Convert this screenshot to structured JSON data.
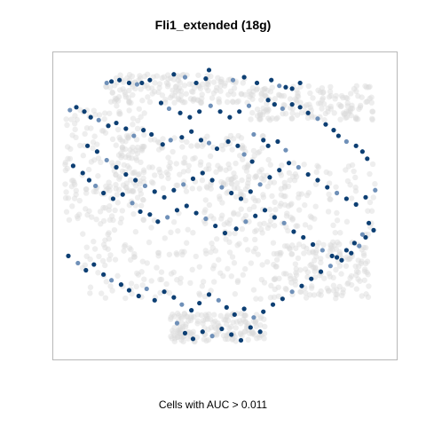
{
  "chart_data": {
    "type": "scatter",
    "title": "Fli1_extended (18g)",
    "xlabel": "Cells with AUC > 0.011",
    "ylabel": "",
    "series": [
      {
        "points": [
          [
            -0.74,
            0.86
          ],
          [
            -0.71,
            0.87
          ],
          [
            -0.66,
            0.88
          ],
          [
            -0.6,
            0.86
          ],
          [
            -0.55,
            0.85
          ],
          [
            -0.52,
            0.86
          ],
          [
            -0.47,
            0.88
          ],
          [
            -0.32,
            0.92
          ],
          [
            -0.25,
            0.9
          ],
          [
            -0.18,
            0.86
          ],
          [
            -0.12,
            0.89
          ],
          [
            -0.1,
            0.95
          ],
          [
            0.05,
            0.88
          ],
          [
            0.12,
            0.9
          ],
          [
            0.2,
            0.86
          ],
          [
            0.29,
            0.88
          ],
          [
            0.34,
            0.84
          ],
          [
            0.38,
            0.83
          ],
          [
            0.42,
            0.82
          ],
          [
            0.47,
            0.86
          ],
          [
            -0.97,
            0.67
          ],
          [
            -0.93,
            0.69
          ],
          [
            -0.88,
            0.66
          ],
          [
            -0.84,
            0.62
          ],
          [
            -0.79,
            0.6
          ],
          [
            -0.73,
            0.56
          ],
          [
            -0.68,
            0.58
          ],
          [
            -0.62,
            0.54
          ],
          [
            -0.57,
            0.49
          ],
          [
            -0.51,
            0.53
          ],
          [
            -0.46,
            0.5
          ],
          [
            -0.39,
            0.43
          ],
          [
            -0.34,
            0.46
          ],
          [
            -0.27,
            0.48
          ],
          [
            -0.21,
            0.52
          ],
          [
            -0.15,
            0.46
          ],
          [
            -0.1,
            0.44
          ],
          [
            -0.05,
            0.4
          ],
          [
            0.02,
            0.45
          ],
          [
            0.08,
            0.42
          ],
          [
            0.12,
            0.36
          ],
          [
            0.17,
            0.31
          ],
          [
            0.27,
            0.74
          ],
          [
            0.31,
            0.71
          ],
          [
            0.36,
            0.68
          ],
          [
            0.42,
            0.71
          ],
          [
            0.47,
            0.69
          ],
          [
            0.52,
            0.65
          ],
          [
            0.58,
            0.61
          ],
          [
            0.63,
            0.57
          ],
          [
            0.68,
            0.53
          ],
          [
            0.71,
            0.49
          ],
          [
            0.76,
            0.45
          ],
          [
            0.82,
            0.42
          ],
          [
            0.86,
            0.38
          ],
          [
            0.89,
            0.33
          ],
          [
            0.18,
            0.5
          ],
          [
            0.24,
            0.46
          ],
          [
            0.27,
            0.42
          ],
          [
            0.33,
            0.45
          ],
          [
            0.38,
            0.39
          ],
          [
            -0.95,
            0.28
          ],
          [
            -0.89,
            0.23
          ],
          [
            -0.85,
            0.18
          ],
          [
            -0.81,
            0.14
          ],
          [
            -0.76,
            0.09
          ],
          [
            -0.7,
            0.05
          ],
          [
            -0.64,
            0.08
          ],
          [
            -0.58,
            0.02
          ],
          [
            -0.53,
            -0.04
          ],
          [
            -0.47,
            -0.06
          ],
          [
            -0.42,
            -0.11
          ],
          [
            -0.36,
            -0.08
          ],
          [
            -0.3,
            -0.03
          ],
          [
            -0.24,
            0.0
          ],
          [
            -0.18,
            -0.05
          ],
          [
            -0.12,
            -0.09
          ],
          [
            -0.06,
            -0.14
          ],
          [
            0.0,
            -0.19
          ],
          [
            0.07,
            -0.16
          ],
          [
            0.13,
            -0.11
          ],
          [
            0.19,
            -0.07
          ],
          [
            0.25,
            -0.03
          ],
          [
            0.31,
            -0.08
          ],
          [
            0.37,
            -0.12
          ],
          [
            0.43,
            -0.18
          ],
          [
            0.49,
            -0.22
          ],
          [
            0.55,
            -0.27
          ],
          [
            0.61,
            -0.31
          ],
          [
            0.67,
            -0.35
          ],
          [
            0.73,
            -0.38
          ],
          [
            0.79,
            -0.33
          ],
          [
            0.84,
            -0.28
          ],
          [
            0.88,
            -0.22
          ],
          [
            0.93,
            -0.17
          ],
          [
            -0.98,
            -0.35
          ],
          [
            -0.92,
            -0.4
          ],
          [
            -0.87,
            -0.45
          ],
          [
            -0.82,
            -0.41
          ],
          [
            -0.76,
            -0.48
          ],
          [
            -0.71,
            -0.52
          ],
          [
            -0.65,
            -0.55
          ],
          [
            -0.6,
            -0.59
          ],
          [
            -0.54,
            -0.63
          ],
          [
            -0.49,
            -0.58
          ],
          [
            -0.44,
            -0.66
          ],
          [
            -0.38,
            -0.6
          ],
          [
            -0.32,
            -0.64
          ],
          [
            -0.27,
            -0.69
          ],
          [
            -0.21,
            -0.73
          ],
          [
            -0.16,
            -0.68
          ],
          [
            -0.1,
            -0.62
          ],
          [
            -0.04,
            -0.66
          ],
          [
            0.01,
            -0.71
          ],
          [
            0.06,
            -0.76
          ],
          [
            0.12,
            -0.72
          ],
          [
            0.18,
            -0.78
          ],
          [
            0.24,
            -0.74
          ],
          [
            0.3,
            -0.69
          ],
          [
            0.36,
            -0.65
          ],
          [
            0.42,
            -0.6
          ],
          [
            0.48,
            -0.56
          ],
          [
            0.54,
            -0.51
          ],
          [
            0.6,
            -0.46
          ],
          [
            0.66,
            -0.42
          ],
          [
            0.7,
            -0.36
          ],
          [
            0.76,
            -0.31
          ],
          [
            0.81,
            -0.26
          ],
          [
            0.86,
            -0.2
          ],
          [
            0.9,
            -0.12
          ],
          [
            -0.86,
            0.42
          ],
          [
            -0.8,
            0.38
          ],
          [
            -0.74,
            0.32
          ],
          [
            -0.68,
            0.27
          ],
          [
            -0.62,
            0.22
          ],
          [
            -0.56,
            0.18
          ],
          [
            -0.5,
            0.14
          ],
          [
            -0.44,
            0.1
          ],
          [
            -0.38,
            0.06
          ],
          [
            -0.32,
            0.11
          ],
          [
            -0.26,
            0.15
          ],
          [
            -0.2,
            0.19
          ],
          [
            -0.14,
            0.23
          ],
          [
            -0.08,
            0.18
          ],
          [
            -0.02,
            0.13
          ],
          [
            0.04,
            0.09
          ],
          [
            0.1,
            0.05
          ],
          [
            0.16,
            0.1
          ],
          [
            0.22,
            0.15
          ],
          [
            0.28,
            0.2
          ],
          [
            0.34,
            0.25
          ],
          [
            0.4,
            0.3
          ],
          [
            0.46,
            0.27
          ],
          [
            0.52,
            0.22
          ],
          [
            0.58,
            0.18
          ],
          [
            0.64,
            0.13
          ],
          [
            0.7,
            0.09
          ],
          [
            0.76,
            0.05
          ],
          [
            0.82,
            0.01
          ],
          [
            0.88,
            0.06
          ],
          [
            0.94,
            0.11
          ],
          [
            -0.25,
            -0.89
          ],
          [
            -0.2,
            -0.93
          ],
          [
            -0.14,
            -0.88
          ],
          [
            -0.08,
            -0.91
          ],
          [
            -0.02,
            -0.86
          ],
          [
            0.04,
            -0.9
          ],
          [
            0.1,
            -0.94
          ],
          [
            -0.3,
            -0.82
          ],
          [
            0.16,
            -0.85
          ],
          [
            0.22,
            -0.88
          ],
          [
            -0.4,
            0.72
          ],
          [
            -0.35,
            0.68
          ],
          [
            -0.28,
            0.65
          ],
          [
            -0.22,
            0.62
          ],
          [
            -0.16,
            0.66
          ],
          [
            -0.09,
            0.7
          ],
          [
            -0.03,
            0.66
          ],
          [
            0.03,
            0.62
          ],
          [
            0.09,
            0.66
          ],
          [
            0.15,
            0.7
          ]
        ]
      }
    ],
    "xlim": [
      -1.08,
      1.08
    ],
    "ylim": [
      -1.08,
      1.08
    ],
    "grid": false,
    "background_cloud_color": "#d9d9d9",
    "point_color_dark": "#0d3f73",
    "point_color_light": "#6f90b8"
  }
}
